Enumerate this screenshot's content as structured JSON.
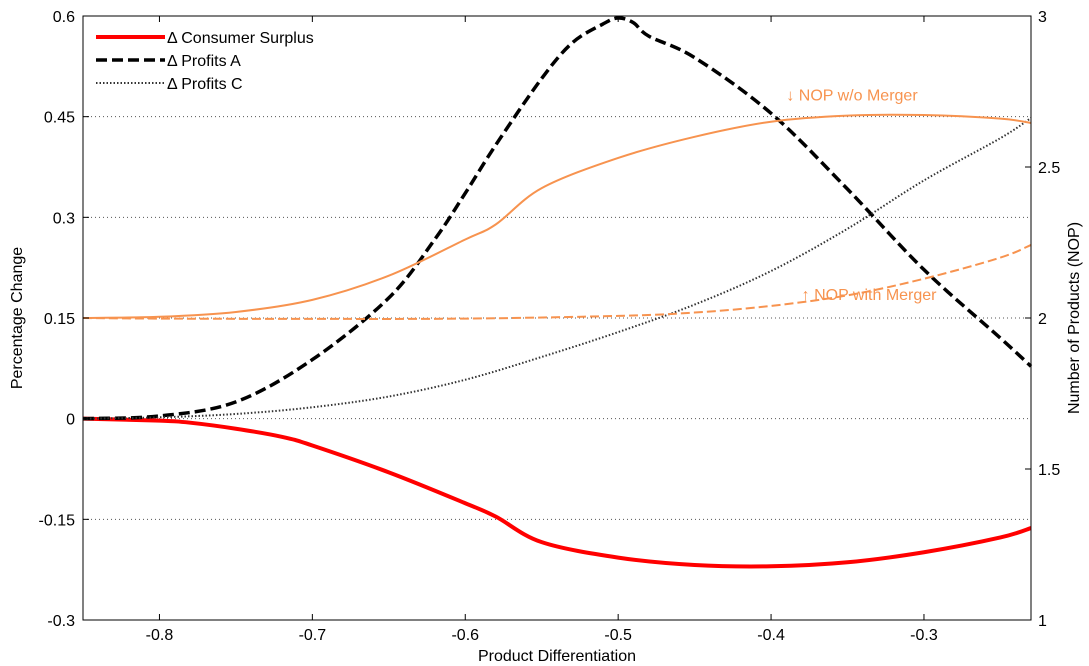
{
  "chart_data": {
    "type": "line",
    "xlabel": "Product Differentiation",
    "ylabel_left": "Percentage Change",
    "ylabel_right": "Number of Products (NOP)",
    "xlim": [
      -0.85,
      -0.23
    ],
    "ylim_left": [
      -0.3,
      0.6
    ],
    "ylim_right": [
      1,
      3
    ],
    "xticks": [
      -0.8,
      -0.7,
      -0.6,
      -0.5,
      -0.4,
      -0.3
    ],
    "xtick_labels": [
      "-0.8",
      "-0.7",
      "-0.6",
      "-0.5",
      "-0.4",
      "-0.3"
    ],
    "yticks_left": [
      -0.3,
      -0.15,
      0,
      0.15,
      0.3,
      0.45,
      0.6
    ],
    "ytick_labels_left": [
      "-0.3",
      "-0.15",
      "0",
      "0.15",
      "0.3",
      "0.45",
      "0.6"
    ],
    "yticks_right": [
      1,
      1.5,
      2,
      2.5,
      3
    ],
    "ytick_labels_right": [
      "1",
      "1.5",
      "2",
      "2.5",
      "3"
    ],
    "grid": "horizontal dotted",
    "legend_position": "top-left",
    "series": [
      {
        "name": "Δ Consumer Surplus",
        "axis": "left",
        "color": "#ff0000",
        "style": "solid-thick",
        "x": [
          -0.85,
          -0.8,
          -0.78,
          -0.75,
          -0.72,
          -0.7,
          -0.65,
          -0.6,
          -0.58,
          -0.55,
          -0.5,
          -0.45,
          -0.4,
          -0.35,
          -0.3,
          -0.25,
          -0.23
        ],
        "y": [
          0,
          -0.003,
          -0.006,
          -0.015,
          -0.027,
          -0.04,
          -0.08,
          -0.126,
          -0.146,
          -0.184,
          -0.207,
          -0.218,
          -0.22,
          -0.214,
          -0.199,
          -0.177,
          -0.163
        ]
      },
      {
        "name": "Δ Profits A",
        "axis": "left",
        "color": "#000000",
        "style": "dashed-thick",
        "x": [
          -0.85,
          -0.8,
          -0.75,
          -0.7,
          -0.65,
          -0.62,
          -0.6,
          -0.58,
          -0.55,
          -0.53,
          -0.51,
          -0.5,
          -0.49,
          -0.48,
          -0.45,
          -0.4,
          -0.35,
          -0.3,
          -0.25,
          -0.23
        ],
        "y": [
          0,
          0.004,
          0.025,
          0.088,
          0.18,
          0.267,
          0.336,
          0.408,
          0.507,
          0.56,
          0.588,
          0.597,
          0.59,
          0.57,
          0.538,
          0.455,
          0.342,
          0.222,
          0.12,
          0.078
        ]
      },
      {
        "name": "Δ Profits C",
        "axis": "left",
        "color": "#333333",
        "style": "dotted",
        "x": [
          -0.85,
          -0.8,
          -0.75,
          -0.7,
          -0.65,
          -0.6,
          -0.55,
          -0.5,
          -0.45,
          -0.4,
          -0.35,
          -0.3,
          -0.25,
          -0.23
        ],
        "y": [
          0,
          0.002,
          0.007,
          0.017,
          0.033,
          0.058,
          0.092,
          0.129,
          0.17,
          0.22,
          0.283,
          0.355,
          0.418,
          0.448
        ]
      },
      {
        "name": "NOP w/o Merger",
        "axis": "right",
        "color": "#f7934f",
        "style": "solid-thin",
        "x": [
          -0.85,
          -0.8,
          -0.75,
          -0.7,
          -0.65,
          -0.6,
          -0.58,
          -0.55,
          -0.5,
          -0.45,
          -0.4,
          -0.35,
          -0.3,
          -0.25,
          -0.23
        ],
        "y": [
          2.0,
          2.004,
          2.02,
          2.06,
          2.14,
          2.26,
          2.31,
          2.43,
          2.53,
          2.6,
          2.65,
          2.67,
          2.672,
          2.66,
          2.646
        ]
      },
      {
        "name": "NOP with Merger",
        "axis": "right",
        "color": "#f7934f",
        "style": "dashed-thin",
        "x": [
          -0.85,
          -0.8,
          -0.7,
          -0.6,
          -0.5,
          -0.45,
          -0.4,
          -0.35,
          -0.3,
          -0.25,
          -0.23
        ],
        "y": [
          2.0,
          1.998,
          1.997,
          1.998,
          2.007,
          2.018,
          2.04,
          2.075,
          2.13,
          2.2,
          2.242
        ]
      }
    ],
    "legend": [
      "Δ Consumer Surplus",
      "Δ Profits A",
      "Δ Profits C"
    ],
    "annotations": [
      {
        "text": "↓ NOP w/o Merger",
        "x": -0.39,
        "y_right": 2.72,
        "color": "#f7934f"
      },
      {
        "text": "↑ NOP with Merger",
        "x": -0.38,
        "y_right": 2.06,
        "color": "#f7934f"
      }
    ]
  }
}
